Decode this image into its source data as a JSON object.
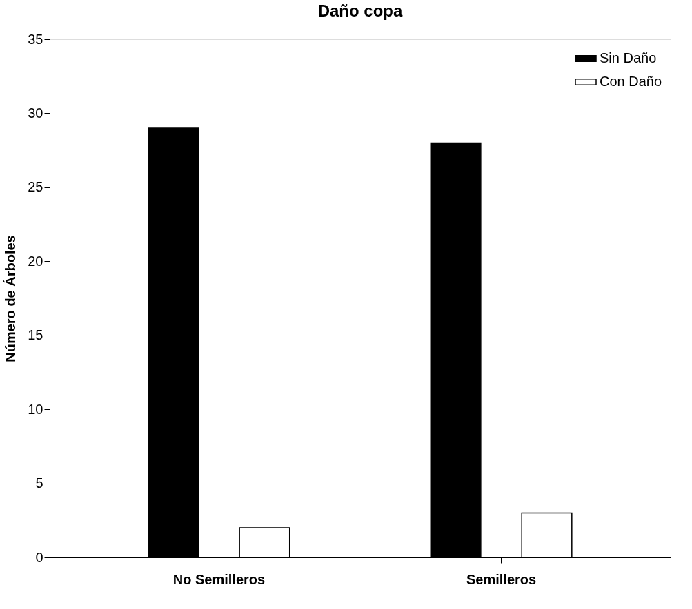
{
  "chart_data": {
    "type": "bar",
    "title": "Daño copa",
    "ylabel": "Número de Árboles",
    "categories": [
      "No Semilleros",
      "Semilleros"
    ],
    "series": [
      {
        "name": "Sin Daño",
        "color": "#000000",
        "values": [
          29,
          28
        ]
      },
      {
        "name": "Con Daño",
        "color": "#ffffff",
        "values": [
          2,
          3
        ]
      }
    ],
    "ylim": [
      0,
      35
    ],
    "yticks": [
      0,
      5,
      10,
      15,
      20,
      25,
      30,
      35
    ],
    "legend": "top right"
  }
}
